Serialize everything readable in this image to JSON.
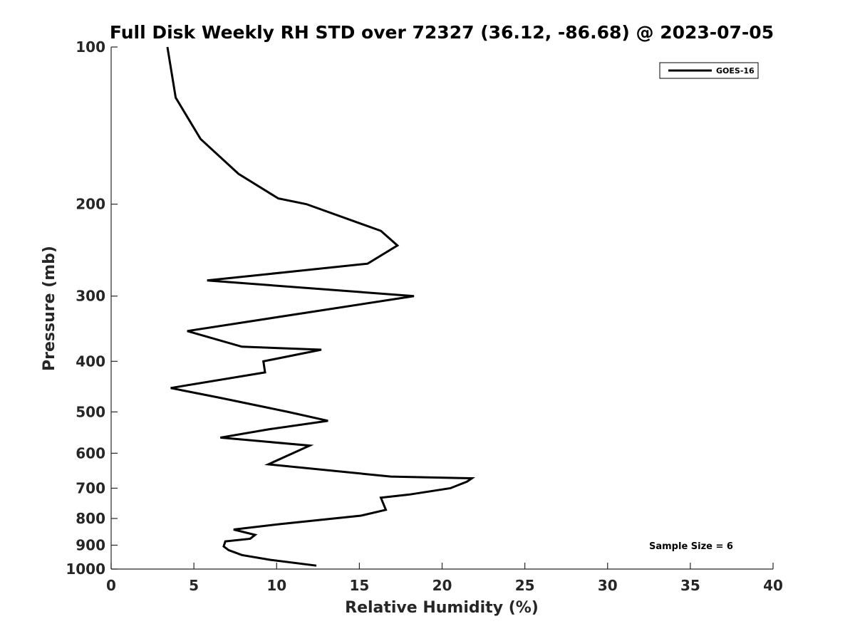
{
  "chart_data": {
    "type": "line",
    "title": "Full Disk Weekly RH STD over 72327 (36.12, -86.68) @ 2023-07-05",
    "xlabel": "Relative Humidity (%)",
    "ylabel": "Pressure (mb)",
    "xlim": [
      0,
      40
    ],
    "ylim": [
      100,
      1000
    ],
    "yscale": "log",
    "y_reversed": true,
    "x_ticks": [
      0,
      5,
      10,
      15,
      20,
      25,
      30,
      35,
      40
    ],
    "y_ticks": [
      100,
      200,
      300,
      400,
      500,
      600,
      700,
      800,
      900,
      1000
    ],
    "grid": false,
    "legend_position": "top-right",
    "annotation": "Sample Size = 6",
    "series": [
      {
        "name": "GOES-16",
        "color": "#000000",
        "x": [
          3.4,
          3.9,
          5.4,
          7.7,
          10.1,
          11.8,
          16.3,
          17.3,
          15.5,
          5.8,
          18.3,
          4.6,
          7.9,
          12.7,
          9.2,
          9.3,
          3.6,
          6.6,
          10.7,
          13.1,
          9.5,
          6.6,
          12.0,
          9.5,
          16.9,
          21.8,
          21.5,
          20.5,
          18.0,
          16.3,
          16.6,
          15.1,
          10.2,
          7.4,
          8.7,
          8.4,
          6.9,
          6.8,
          7.1,
          7.9,
          9.6,
          12.4
        ],
        "y": [
          100,
          125,
          150,
          175,
          195,
          200,
          225,
          240,
          260,
          280,
          300,
          350,
          375,
          380,
          400,
          420,
          450,
          470,
          500,
          520,
          540,
          560,
          580,
          630,
          665,
          670,
          680,
          700,
          720,
          730,
          770,
          790,
          820,
          840,
          860,
          875,
          885,
          905,
          920,
          940,
          960,
          985
        ]
      }
    ]
  }
}
